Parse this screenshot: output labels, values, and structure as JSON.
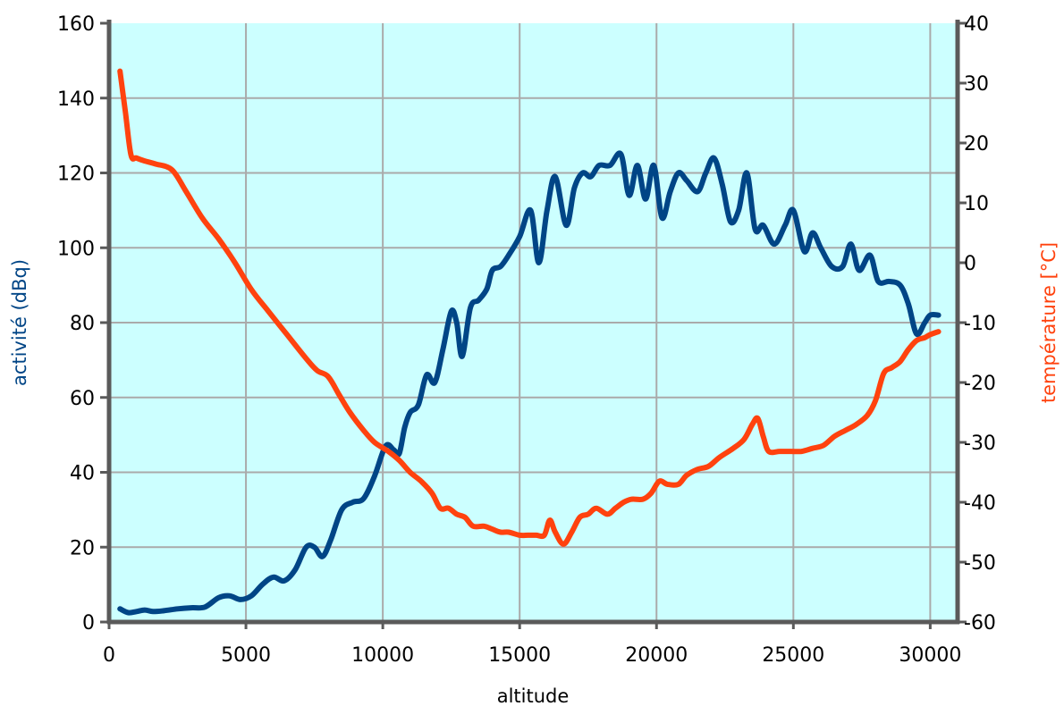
{
  "chart_data": {
    "type": "line",
    "xlabel": "altitude",
    "ylabel": "activité (dBq)",
    "y2label": "température [°C]",
    "xlim": [
      0,
      31000
    ],
    "ylim": [
      0,
      160
    ],
    "y2lim": [
      -60,
      40
    ],
    "x_ticks": [
      "0",
      "5000",
      "10000",
      "15000",
      "20000",
      "25000",
      "30000"
    ],
    "y_ticks": [
      "0",
      "20",
      "40",
      "60",
      "80",
      "100",
      "120",
      "140",
      "160"
    ],
    "y2_ticks": [
      "-60",
      "-50",
      "-40",
      "-30",
      "-20",
      "-10",
      "0",
      "10",
      "20",
      "30",
      "40"
    ],
    "grid": true,
    "colors": {
      "background": "#ccffff",
      "grid": "#aaaaaa",
      "axis": "#5a5a5a",
      "activity": "#004586",
      "temperature": "#ff420e"
    },
    "series": [
      {
        "axis": "left",
        "points": [
          [
            400,
            3.5
          ],
          [
            700,
            2.5
          ],
          [
            1000,
            2.8
          ],
          [
            1300,
            3.2
          ],
          [
            1600,
            2.8
          ],
          [
            2000,
            3
          ],
          [
            2500,
            3.5
          ],
          [
            3000,
            3.8
          ],
          [
            3500,
            4
          ],
          [
            4000,
            6.5
          ],
          [
            4400,
            7
          ],
          [
            4800,
            6
          ],
          [
            5200,
            7
          ],
          [
            5600,
            10
          ],
          [
            6000,
            12
          ],
          [
            6400,
            11
          ],
          [
            6800,
            14
          ],
          [
            7200,
            20
          ],
          [
            7500,
            20
          ],
          [
            7800,
            17.5
          ],
          [
            8100,
            22
          ],
          [
            8500,
            30
          ],
          [
            8900,
            32
          ],
          [
            9300,
            33
          ],
          [
            9700,
            39
          ],
          [
            10100,
            47
          ],
          [
            10400,
            46
          ],
          [
            10600,
            45
          ],
          [
            10800,
            52
          ],
          [
            11000,
            56
          ],
          [
            11300,
            58
          ],
          [
            11600,
            66
          ],
          [
            11900,
            64
          ],
          [
            12200,
            73
          ],
          [
            12500,
            83
          ],
          [
            12700,
            80
          ],
          [
            12900,
            71
          ],
          [
            13200,
            84
          ],
          [
            13500,
            86
          ],
          [
            13800,
            89
          ],
          [
            14000,
            94
          ],
          [
            14300,
            95
          ],
          [
            14600,
            98
          ],
          [
            15000,
            103
          ],
          [
            15400,
            110
          ],
          [
            15700,
            96
          ],
          [
            16000,
            110
          ],
          [
            16300,
            119
          ],
          [
            16700,
            106
          ],
          [
            17000,
            116
          ],
          [
            17300,
            120
          ],
          [
            17600,
            119
          ],
          [
            17900,
            122
          ],
          [
            18300,
            122
          ],
          [
            18700,
            125
          ],
          [
            19000,
            114
          ],
          [
            19300,
            122
          ],
          [
            19600,
            113
          ],
          [
            19900,
            122
          ],
          [
            20200,
            108
          ],
          [
            20500,
            115
          ],
          [
            20800,
            120
          ],
          [
            21100,
            118
          ],
          [
            21500,
            115
          ],
          [
            21800,
            120
          ],
          [
            22100,
            124
          ],
          [
            22400,
            117
          ],
          [
            22700,
            107
          ],
          [
            23000,
            110
          ],
          [
            23300,
            120
          ],
          [
            23600,
            105
          ],
          [
            23900,
            106
          ],
          [
            24300,
            101
          ],
          [
            24700,
            106
          ],
          [
            25000,
            110
          ],
          [
            25400,
            99
          ],
          [
            25700,
            104
          ],
          [
            26000,
            100
          ],
          [
            26400,
            95
          ],
          [
            26800,
            95
          ],
          [
            27100,
            101
          ],
          [
            27400,
            94
          ],
          [
            27800,
            98
          ],
          [
            28100,
            91
          ],
          [
            28500,
            91
          ],
          [
            28900,
            90
          ],
          [
            29200,
            85
          ],
          [
            29500,
            77
          ],
          [
            29800,
            80
          ],
          [
            30000,
            82
          ],
          [
            30300,
            82
          ]
        ]
      },
      {
        "axis": "right",
        "points": [
          [
            400,
            32
          ],
          [
            600,
            25
          ],
          [
            800,
            18
          ],
          [
            1000,
            17.5
          ],
          [
            1300,
            17
          ],
          [
            1700,
            16.5
          ],
          [
            2300,
            15.5
          ],
          [
            2800,
            12
          ],
          [
            3400,
            7.5
          ],
          [
            4000,
            4
          ],
          [
            4600,
            0
          ],
          [
            5200,
            -4.5
          ],
          [
            5800,
            -8
          ],
          [
            6500,
            -12
          ],
          [
            7200,
            -16
          ],
          [
            7600,
            -18
          ],
          [
            8000,
            -19
          ],
          [
            8400,
            -22
          ],
          [
            8800,
            -25
          ],
          [
            9300,
            -28
          ],
          [
            9700,
            -30
          ],
          [
            10200,
            -31.5
          ],
          [
            10600,
            -33
          ],
          [
            11000,
            -35
          ],
          [
            11400,
            -36.5
          ],
          [
            11800,
            -38.5
          ],
          [
            12100,
            -41
          ],
          [
            12400,
            -41
          ],
          [
            12700,
            -42
          ],
          [
            13000,
            -42.5
          ],
          [
            13300,
            -44
          ],
          [
            13700,
            -44
          ],
          [
            14000,
            -44.5
          ],
          [
            14300,
            -45
          ],
          [
            14600,
            -45
          ],
          [
            15000,
            -45.5
          ],
          [
            15300,
            -45.5
          ],
          [
            15600,
            -45.5
          ],
          [
            15900,
            -45.5
          ],
          [
            16100,
            -43
          ],
          [
            16300,
            -45
          ],
          [
            16600,
            -47
          ],
          [
            16900,
            -45
          ],
          [
            17200,
            -42.5
          ],
          [
            17500,
            -42
          ],
          [
            17800,
            -41
          ],
          [
            18200,
            -42
          ],
          [
            18500,
            -41
          ],
          [
            18800,
            -40
          ],
          [
            19100,
            -39.5
          ],
          [
            19500,
            -39.5
          ],
          [
            19800,
            -38.5
          ],
          [
            20100,
            -36.5
          ],
          [
            20400,
            -37
          ],
          [
            20800,
            -37
          ],
          [
            21100,
            -35.5
          ],
          [
            21500,
            -34.5
          ],
          [
            21900,
            -34
          ],
          [
            22300,
            -32.5
          ],
          [
            22800,
            -31
          ],
          [
            23200,
            -29.5
          ],
          [
            23500,
            -27
          ],
          [
            23700,
            -26
          ],
          [
            23900,
            -29
          ],
          [
            24100,
            -31.5
          ],
          [
            24500,
            -31.5
          ],
          [
            24900,
            -31.5
          ],
          [
            25300,
            -31.5
          ],
          [
            25700,
            -31
          ],
          [
            26100,
            -30.5
          ],
          [
            26500,
            -29
          ],
          [
            26900,
            -28
          ],
          [
            27300,
            -27
          ],
          [
            27700,
            -25.5
          ],
          [
            28000,
            -23
          ],
          [
            28300,
            -18.5
          ],
          [
            28600,
            -17.5
          ],
          [
            28900,
            -16.5
          ],
          [
            29200,
            -14.5
          ],
          [
            29500,
            -13
          ],
          [
            29800,
            -12.5
          ],
          [
            30000,
            -12
          ],
          [
            30300,
            -11.5
          ]
        ]
      }
    ]
  }
}
